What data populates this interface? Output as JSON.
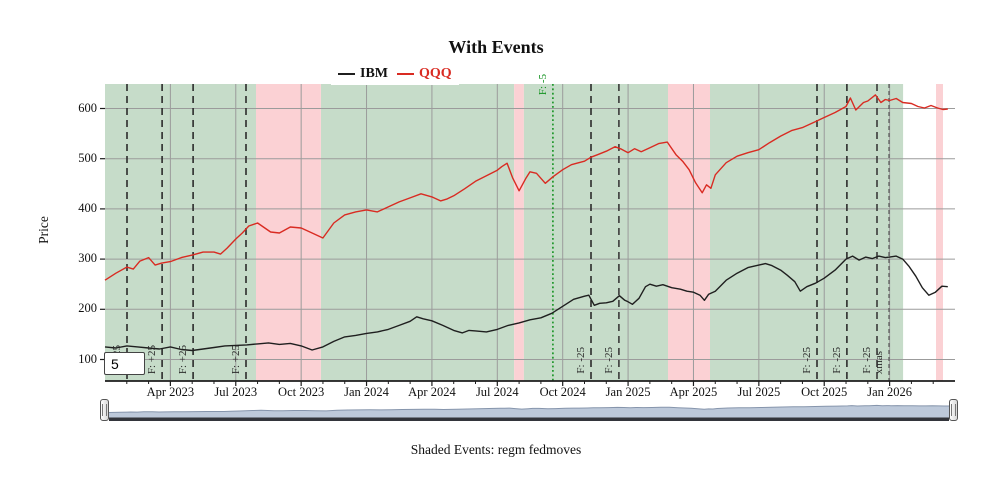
{
  "title": "With Events",
  "y_axis": {
    "label": "Price",
    "ticks": [
      100,
      200,
      300,
      400,
      500,
      600
    ]
  },
  "x_axis": {
    "ticks": [
      {
        "t": 3,
        "label": "Apr 2023"
      },
      {
        "t": 6,
        "label": "Jul 2023"
      },
      {
        "t": 9,
        "label": "Oct 2023"
      },
      {
        "t": 12,
        "label": "Jan 2024"
      },
      {
        "t": 15,
        "label": "Apr 2024"
      },
      {
        "t": 18,
        "label": "Jul 2024"
      },
      {
        "t": 21,
        "label": "Oct 2024"
      },
      {
        "t": 24,
        "label": "Jan 2025"
      },
      {
        "t": 27,
        "label": "Apr 2025"
      },
      {
        "t": 30,
        "label": "Jul 2025"
      },
      {
        "t": 33,
        "label": "Oct 2025"
      },
      {
        "t": 36,
        "label": "Jan 2026"
      }
    ],
    "minor_tick_months": [
      1,
      2,
      4,
      5,
      7,
      8,
      10,
      11,
      13,
      14,
      16,
      17,
      19,
      20,
      22,
      23,
      25,
      26,
      28,
      29,
      31,
      32,
      34,
      35,
      37,
      38
    ]
  },
  "legend": {
    "items": [
      {
        "label": "IBM",
        "color": "#1f1f1f"
      },
      {
        "label": "QQQ",
        "color": "#d92b22"
      }
    ]
  },
  "events": {
    "caption": "Shaded Events: regm fedmoves",
    "bands": [
      {
        "from_t": 0.0,
        "to_t": 6.93,
        "color": "#c6dcc9"
      },
      {
        "from_t": 6.93,
        "to_t": 9.91,
        "color": "#fbd1d4"
      },
      {
        "from_t": 9.91,
        "to_t": 18.77,
        "color": "#c6dcc9"
      },
      {
        "from_t": 18.77,
        "to_t": 19.22,
        "color": "#fbd1d4"
      },
      {
        "from_t": 19.22,
        "to_t": 25.83,
        "color": "#c6dcc9"
      },
      {
        "from_t": 25.83,
        "to_t": 27.76,
        "color": "#fbd1d4"
      },
      {
        "from_t": 27.76,
        "to_t": 36.62,
        "color": "#c6dcc9"
      },
      {
        "from_t": 38.13,
        "to_t": 38.45,
        "color": "#fbd1d4"
      }
    ],
    "lines": [
      {
        "t": 1.01,
        "label": "F: +25",
        "style": "dashed",
        "color": "#2b2b2b",
        "label_pos": "bottom"
      },
      {
        "t": 2.62,
        "label": "F: +25",
        "style": "dashed",
        "color": "#2b2b2b",
        "label_pos": "bottom"
      },
      {
        "t": 4.04,
        "label": "F: +25",
        "style": "dashed",
        "color": "#2b2b2b",
        "label_pos": "bottom"
      },
      {
        "t": 6.47,
        "label": "F: +25",
        "style": "dashed",
        "color": "#2b2b2b",
        "label_pos": "bottom"
      },
      {
        "t": 20.55,
        "label": "F: -5",
        "style": "dotted",
        "color": "#12921f",
        "label_pos": "top"
      },
      {
        "t": 22.3,
        "label": "F: -25",
        "style": "dashed",
        "color": "#2b2b2b",
        "label_pos": "bottom"
      },
      {
        "t": 23.58,
        "label": "F: -25",
        "style": "dashed",
        "color": "#3a3a3a",
        "label_pos": "bottom"
      },
      {
        "t": 32.67,
        "label": "F: -25",
        "style": "dashed",
        "color": "#2b2b2b",
        "label_pos": "bottom"
      },
      {
        "t": 34.04,
        "label": "F: -25",
        "style": "dashed",
        "color": "#2b2b2b",
        "label_pos": "bottom"
      },
      {
        "t": 35.42,
        "label": "F: -25",
        "style": "dashed",
        "color": "#3a3a3a",
        "label_pos": "bottom"
      },
      {
        "t": 35.97,
        "label": "xmas",
        "style": "dashed-fine",
        "color": "#555",
        "label_pos": "bottom"
      }
    ]
  },
  "controls": {
    "window_input_value": "5"
  },
  "colors": {
    "band_green": "#c6dcc9",
    "band_pink": "#fbd1d4",
    "grid": "#9b9b9b",
    "axis": "#1d1d1d",
    "ibm_line": "#1f1f1f",
    "qqq_line": "#d92b22",
    "event_dotted_green": "#12921f",
    "slider_wave_fill": "#bdc9da",
    "slider_wave_edge": "#8695ac",
    "slider_bar": "#33353b"
  },
  "chart_data": {
    "type": "line",
    "title": "With Events",
    "ylabel": "Price",
    "x_unit": "months since Jan 2023",
    "x_domain": [
      0,
      39
    ],
    "y_domain": [
      57,
      649
    ],
    "grid": true,
    "legend_position": "top-center",
    "series": [
      {
        "name": "IBM",
        "color": "#1f1f1f",
        "points": [
          [
            0,
            125
          ],
          [
            0.5,
            123
          ],
          [
            1,
            127
          ],
          [
            1.5,
            125
          ],
          [
            2,
            123
          ],
          [
            2.5,
            121
          ],
          [
            3,
            125
          ],
          [
            3.5,
            120
          ],
          [
            4,
            118
          ],
          [
            4.5,
            121
          ],
          [
            5,
            124
          ],
          [
            5.5,
            127
          ],
          [
            6,
            128
          ],
          [
            6.5,
            129
          ],
          [
            7,
            131
          ],
          [
            7.5,
            133
          ],
          [
            8,
            130
          ],
          [
            8.5,
            132
          ],
          [
            9,
            127
          ],
          [
            9.5,
            119
          ],
          [
            10,
            125
          ],
          [
            10.5,
            136
          ],
          [
            11,
            145
          ],
          [
            11.5,
            148
          ],
          [
            12,
            152
          ],
          [
            12.5,
            155
          ],
          [
            13,
            160
          ],
          [
            13.5,
            168
          ],
          [
            14,
            176
          ],
          [
            14.3,
            185
          ],
          [
            14.6,
            181
          ],
          [
            15,
            177
          ],
          [
            15.5,
            168
          ],
          [
            16,
            158
          ],
          [
            16.4,
            153
          ],
          [
            16.7,
            158
          ],
          [
            17,
            157
          ],
          [
            17.5,
            155
          ],
          [
            18,
            160
          ],
          [
            18.5,
            168
          ],
          [
            19,
            173
          ],
          [
            19.5,
            179
          ],
          [
            20,
            183
          ],
          [
            20.5,
            192
          ],
          [
            21,
            206
          ],
          [
            21.5,
            220
          ],
          [
            22,
            226
          ],
          [
            22.2,
            228
          ],
          [
            22.45,
            208
          ],
          [
            22.7,
            212
          ],
          [
            23,
            213
          ],
          [
            23.3,
            216
          ],
          [
            23.6,
            227
          ],
          [
            23.85,
            218
          ],
          [
            24,
            215
          ],
          [
            24.2,
            210
          ],
          [
            24.5,
            222
          ],
          [
            24.8,
            245
          ],
          [
            25,
            250
          ],
          [
            25.3,
            246
          ],
          [
            25.6,
            249
          ],
          [
            26,
            243
          ],
          [
            26.4,
            240
          ],
          [
            26.7,
            236
          ],
          [
            27,
            234
          ],
          [
            27.3,
            228
          ],
          [
            27.5,
            218
          ],
          [
            27.7,
            230
          ],
          [
            28,
            236
          ],
          [
            28.5,
            258
          ],
          [
            29,
            272
          ],
          [
            29.5,
            283
          ],
          [
            30,
            288
          ],
          [
            30.3,
            291
          ],
          [
            30.6,
            287
          ],
          [
            31,
            278
          ],
          [
            31.3,
            268
          ],
          [
            31.65,
            255
          ],
          [
            31.9,
            236
          ],
          [
            32.2,
            245
          ],
          [
            32.6,
            252
          ],
          [
            33,
            262
          ],
          [
            33.5,
            278
          ],
          [
            34,
            300
          ],
          [
            34.3,
            306
          ],
          [
            34.6,
            298
          ],
          [
            34.9,
            304
          ],
          [
            35.2,
            301
          ],
          [
            35.5,
            306
          ],
          [
            35.8,
            303
          ],
          [
            36,
            304
          ],
          [
            36.3,
            306
          ],
          [
            36.6,
            300
          ],
          [
            36.9,
            285
          ],
          [
            37.2,
            266
          ],
          [
            37.5,
            243
          ],
          [
            37.8,
            228
          ],
          [
            38.1,
            234
          ],
          [
            38.4,
            246
          ],
          [
            38.67,
            245
          ]
        ]
      },
      {
        "name": "QQQ",
        "color": "#d92b22",
        "points": [
          [
            0,
            258
          ],
          [
            0.5,
            272
          ],
          [
            1,
            284
          ],
          [
            1.3,
            280
          ],
          [
            1.6,
            296
          ],
          [
            2,
            303
          ],
          [
            2.3,
            288
          ],
          [
            2.6,
            292
          ],
          [
            3,
            295
          ],
          [
            3.5,
            303
          ],
          [
            4,
            308
          ],
          [
            4.5,
            314
          ],
          [
            5,
            314
          ],
          [
            5.3,
            310
          ],
          [
            5.6,
            322
          ],
          [
            6,
            340
          ],
          [
            6.3,
            352
          ],
          [
            6.6,
            366
          ],
          [
            7,
            372
          ],
          [
            7.3,
            363
          ],
          [
            7.6,
            354
          ],
          [
            8,
            352
          ],
          [
            8.5,
            364
          ],
          [
            9,
            362
          ],
          [
            9.5,
            352
          ],
          [
            10,
            342
          ],
          [
            10.5,
            372
          ],
          [
            11,
            388
          ],
          [
            11.5,
            394
          ],
          [
            12,
            398
          ],
          [
            12.5,
            394
          ],
          [
            13,
            404
          ],
          [
            13.5,
            414
          ],
          [
            14,
            422
          ],
          [
            14.5,
            430
          ],
          [
            15,
            424
          ],
          [
            15.4,
            416
          ],
          [
            15.7,
            420
          ],
          [
            16,
            426
          ],
          [
            16.5,
            440
          ],
          [
            17,
            455
          ],
          [
            17.5,
            466
          ],
          [
            18,
            477
          ],
          [
            18.2,
            484
          ],
          [
            18.45,
            491
          ],
          [
            18.7,
            462
          ],
          [
            19,
            436
          ],
          [
            19.3,
            460
          ],
          [
            19.5,
            474
          ],
          [
            19.8,
            471
          ],
          [
            20.2,
            451
          ],
          [
            20.55,
            464
          ],
          [
            21,
            478
          ],
          [
            21.4,
            488
          ],
          [
            21.65,
            491
          ],
          [
            22,
            495
          ],
          [
            22.3,
            503
          ],
          [
            22.6,
            508
          ],
          [
            23,
            515
          ],
          [
            23.4,
            524
          ],
          [
            23.7,
            519
          ],
          [
            24,
            512
          ],
          [
            24.3,
            520
          ],
          [
            24.6,
            514
          ],
          [
            25,
            522
          ],
          [
            25.4,
            530
          ],
          [
            25.8,
            533
          ],
          [
            26.2,
            508
          ],
          [
            26.5,
            495
          ],
          [
            26.8,
            478
          ],
          [
            27.1,
            452
          ],
          [
            27.4,
            432
          ],
          [
            27.6,
            448
          ],
          [
            27.8,
            441
          ],
          [
            28,
            468
          ],
          [
            28.5,
            492
          ],
          [
            29,
            505
          ],
          [
            29.5,
            512
          ],
          [
            30,
            518
          ],
          [
            30.5,
            532
          ],
          [
            31,
            545
          ],
          [
            31.5,
            556
          ],
          [
            32,
            562
          ],
          [
            32.5,
            572
          ],
          [
            33,
            582
          ],
          [
            33.5,
            592
          ],
          [
            34,
            604
          ],
          [
            34.2,
            621
          ],
          [
            34.45,
            597
          ],
          [
            34.8,
            612
          ],
          [
            35,
            615
          ],
          [
            35.35,
            627
          ],
          [
            35.6,
            612
          ],
          [
            35.8,
            618
          ],
          [
            36,
            616
          ],
          [
            36.3,
            620
          ],
          [
            36.6,
            612
          ],
          [
            37,
            610
          ],
          [
            37.3,
            604
          ],
          [
            37.6,
            601
          ],
          [
            37.9,
            606
          ],
          [
            38.2,
            601
          ],
          [
            38.45,
            598
          ],
          [
            38.67,
            599
          ]
        ]
      }
    ]
  }
}
